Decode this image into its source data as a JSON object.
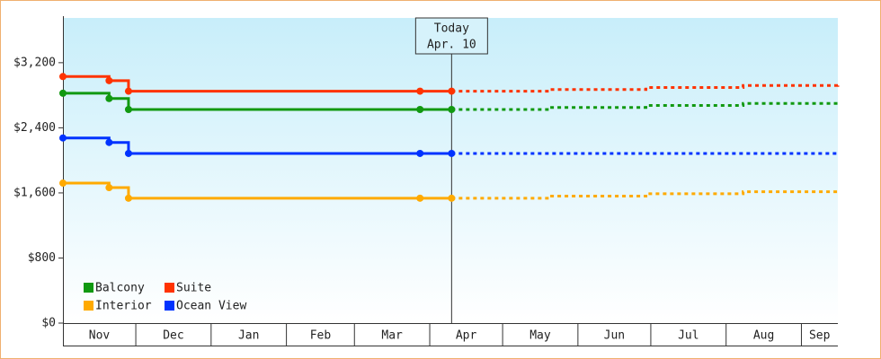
{
  "chart_data": {
    "type": "line",
    "step": true,
    "xlim": [
      0,
      319
    ],
    "xticks": [
      {
        "value": 0,
        "label": "Nov"
      },
      {
        "value": 30,
        "label": "Dec"
      },
      {
        "value": 61,
        "label": "Jan"
      },
      {
        "value": 92,
        "label": "Feb"
      },
      {
        "value": 120,
        "label": "Mar"
      },
      {
        "value": 151,
        "label": "Apr"
      },
      {
        "value": 181,
        "label": "May"
      },
      {
        "value": 212,
        "label": "Jun"
      },
      {
        "value": 242,
        "label": "Jul"
      },
      {
        "value": 273,
        "label": "Aug"
      },
      {
        "value": 304,
        "label": "Sep"
      }
    ],
    "ylim": [
      0,
      3750
    ],
    "yticks": [
      {
        "value": 0,
        "label": "$0"
      },
      {
        "value": 800,
        "label": "$800"
      },
      {
        "value": 1600,
        "label": "$1,600"
      },
      {
        "value": 2400,
        "label": "$2,400"
      },
      {
        "value": 3200,
        "label": "$3,200"
      }
    ],
    "today": {
      "x": 160,
      "label": [
        "Today",
        "Apr. 10"
      ]
    },
    "legend": "bottom-left",
    "series": [
      {
        "name": "Balcony",
        "color": "#119911",
        "x": [
          0,
          19,
          27,
          147,
          160
        ],
        "values": [
          2825,
          2760,
          2625,
          2625,
          2625
        ],
        "forecast": {
          "x": [
            160,
            200,
            240,
            280,
            319
          ],
          "values": [
            2625,
            2650,
            2675,
            2700,
            2725
          ]
        }
      },
      {
        "name": "Suite",
        "color": "#ff3300",
        "x": [
          0,
          19,
          27,
          147,
          160
        ],
        "values": [
          3030,
          2980,
          2850,
          2850,
          2850
        ],
        "forecast": {
          "x": [
            160,
            200,
            240,
            280,
            319
          ],
          "values": [
            2850,
            2870,
            2895,
            2920,
            2945
          ]
        }
      },
      {
        "name": "Interior",
        "color": "#ffaa00",
        "x": [
          0,
          19,
          27,
          147,
          160
        ],
        "values": [
          1720,
          1665,
          1535,
          1535,
          1535
        ],
        "forecast": {
          "x": [
            160,
            200,
            240,
            280,
            319
          ],
          "values": [
            1535,
            1560,
            1590,
            1615,
            1645
          ]
        }
      },
      {
        "name": "Ocean View",
        "color": "#0033ff",
        "x": [
          0,
          19,
          27,
          147,
          160
        ],
        "values": [
          2275,
          2220,
          2085,
          2085,
          2085
        ],
        "forecast": {
          "x": [
            160,
            200,
            240,
            280,
            319
          ],
          "values": [
            2085,
            2085,
            2085,
            2085,
            2085
          ]
        }
      }
    ]
  }
}
